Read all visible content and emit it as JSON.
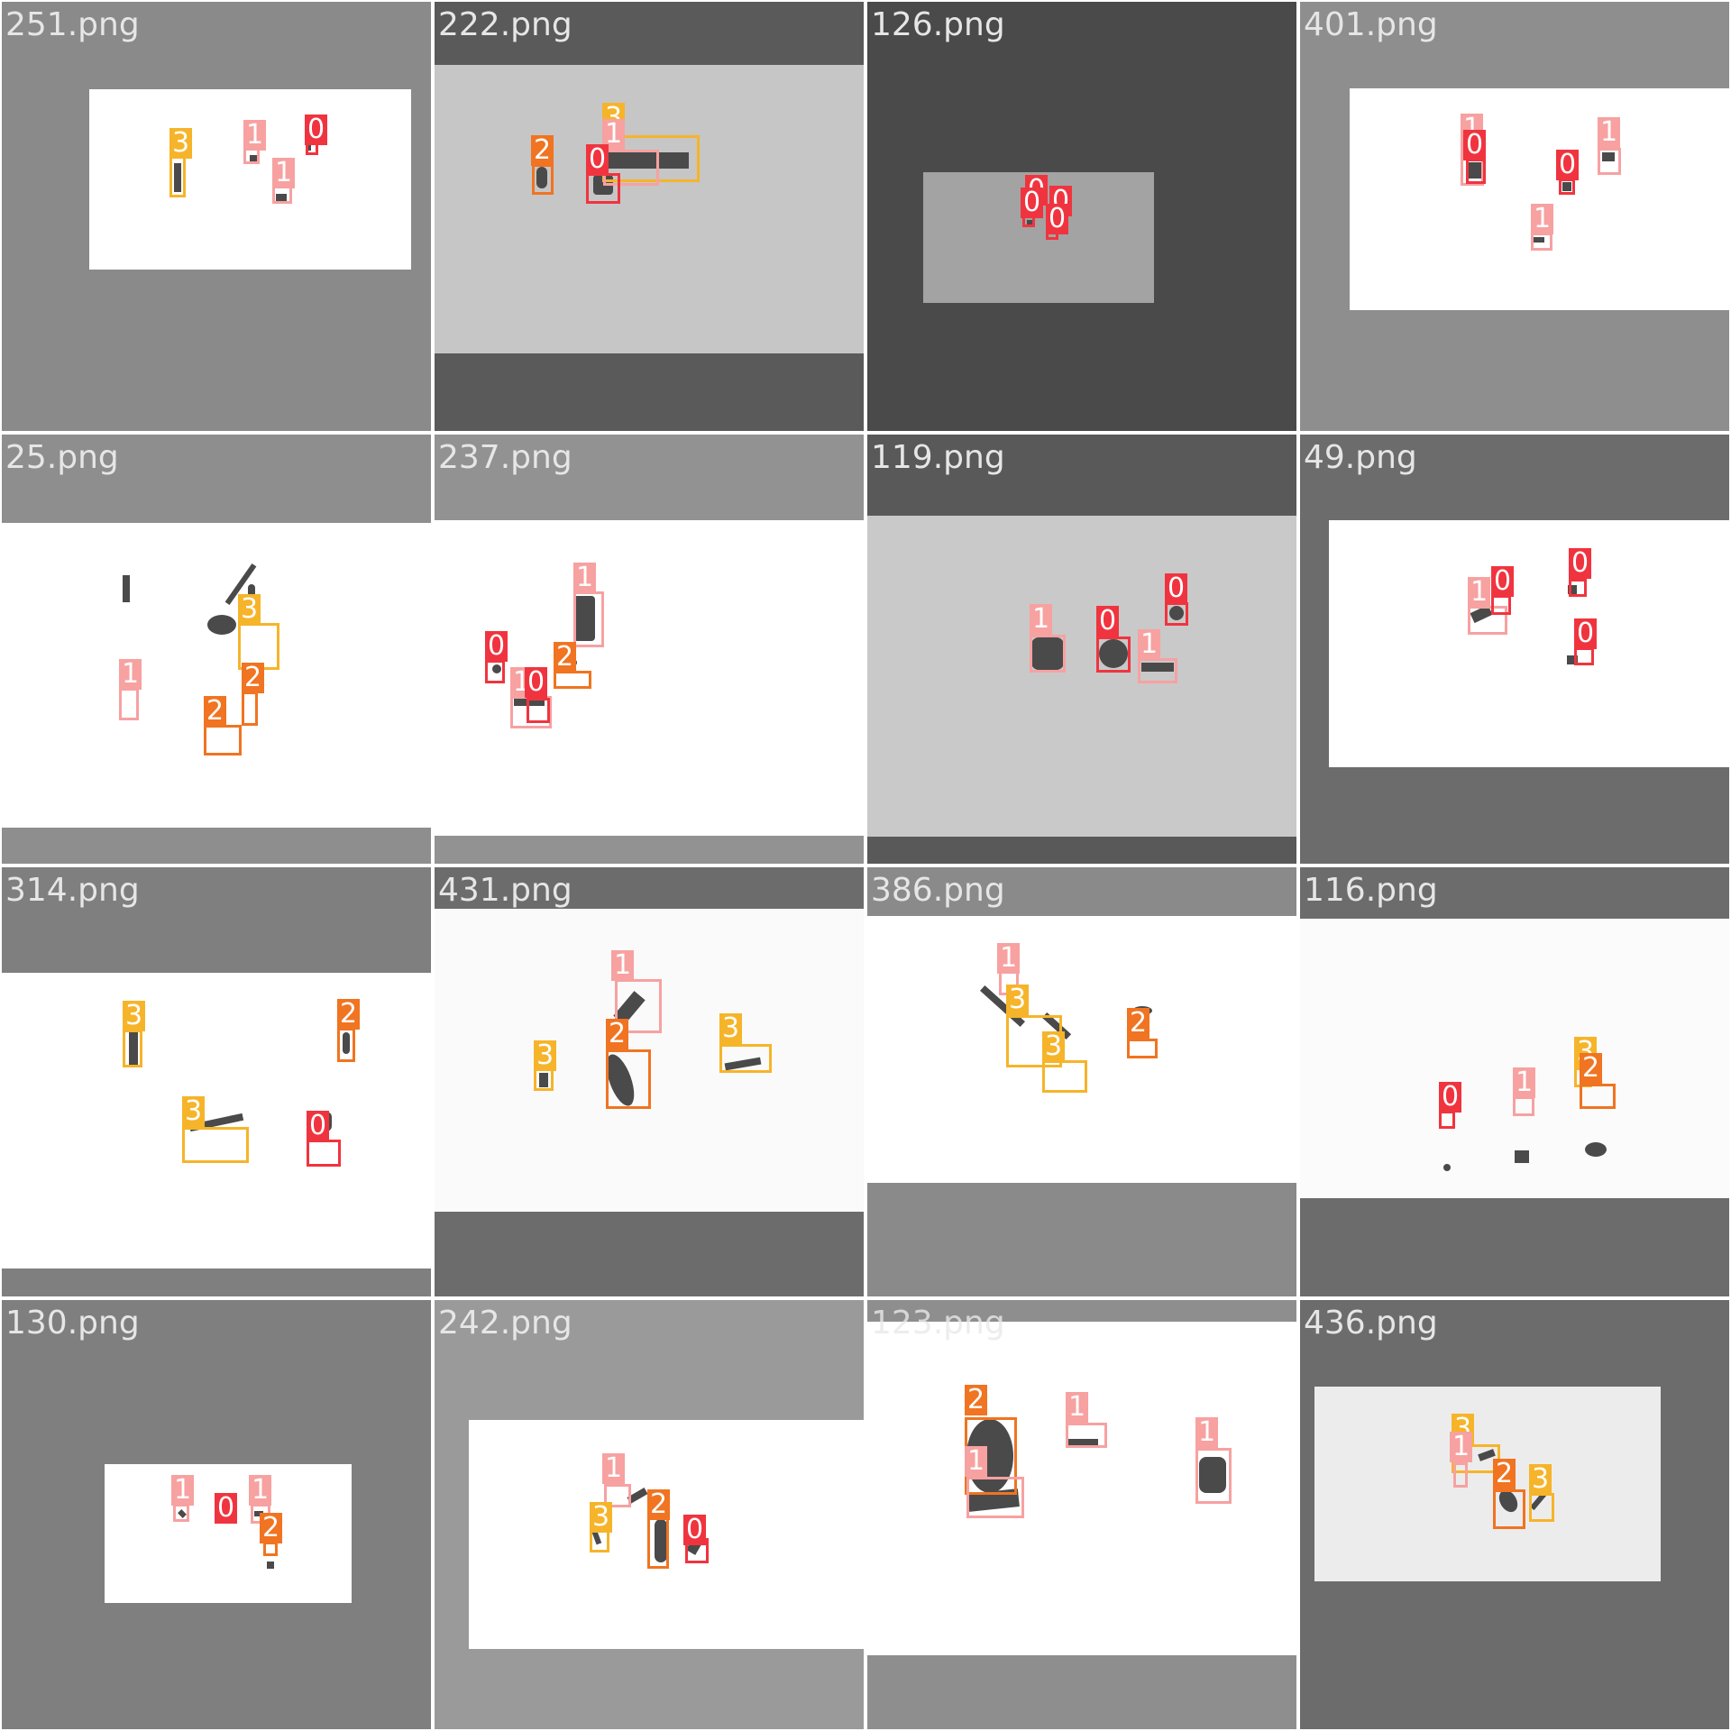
{
  "colors": {
    "class_0": "#f0343f",
    "class_1": "#f7a1a1",
    "class_2": "#f07421",
    "class_3": "#f6b42a"
  },
  "tiles": [
    {
      "name": "251.png",
      "bg": "#8a8a8a",
      "photo_bg": "#ffffff",
      "detections": [
        {
          "cls": "3",
          "label": "3"
        },
        {
          "cls": "1",
          "label": "1"
        },
        {
          "cls": "0",
          "label": "0"
        },
        {
          "cls": "1",
          "label": "1"
        }
      ]
    },
    {
      "name": "222.png",
      "bg": "#5a5a5a",
      "photo_bg": "#c6c6c6",
      "detections": [
        {
          "cls": "2",
          "label": "2"
        },
        {
          "cls": "3",
          "label": "3"
        },
        {
          "cls": "1",
          "label": "1"
        },
        {
          "cls": "0",
          "label": "0"
        }
      ]
    },
    {
      "name": "126.png",
      "bg": "#4a4a4a",
      "photo_bg": "#a3a3a3",
      "detections": [
        {
          "cls": "0",
          "label": "0"
        },
        {
          "cls": "0",
          "label": "0"
        },
        {
          "cls": "0",
          "label": "0"
        },
        {
          "cls": "0",
          "label": "0"
        }
      ]
    },
    {
      "name": "401.png",
      "bg": "#8e8e8e",
      "photo_bg": "#ffffff",
      "detections": [
        {
          "cls": "1",
          "label": "1"
        },
        {
          "cls": "0",
          "label": "0"
        },
        {
          "cls": "0",
          "label": "0"
        },
        {
          "cls": "1",
          "label": "1"
        },
        {
          "cls": "1",
          "label": "1"
        }
      ]
    },
    {
      "name": "25.png",
      "bg": "#8e8e8e",
      "photo_bg": "#ffffff",
      "detections": [
        {
          "cls": "3",
          "label": "3"
        },
        {
          "cls": "1",
          "label": "1"
        },
        {
          "cls": "2",
          "label": "2"
        },
        {
          "cls": "2",
          "label": "2"
        }
      ]
    },
    {
      "name": "237.png",
      "bg": "#929292",
      "photo_bg": "#ffffff",
      "detections": [
        {
          "cls": "1",
          "label": "1"
        },
        {
          "cls": "0",
          "label": "0"
        },
        {
          "cls": "2",
          "label": "2"
        },
        {
          "cls": "1",
          "label": "1"
        },
        {
          "cls": "0",
          "label": "0"
        }
      ]
    },
    {
      "name": "119.png",
      "bg": "#595959",
      "photo_bg": "#c9c9c9",
      "detections": [
        {
          "cls": "1",
          "label": "1"
        },
        {
          "cls": "0",
          "label": "0"
        },
        {
          "cls": "0",
          "label": "0"
        },
        {
          "cls": "1",
          "label": "1"
        }
      ]
    },
    {
      "name": "49.png",
      "bg": "#6c6c6c",
      "photo_bg": "#ffffff",
      "detections": [
        {
          "cls": "1",
          "label": "1"
        },
        {
          "cls": "0",
          "label": "0"
        },
        {
          "cls": "0",
          "label": "0"
        },
        {
          "cls": "0",
          "label": "0"
        }
      ]
    },
    {
      "name": "314.png",
      "bg": "#7f7f7f",
      "photo_bg": "#ffffff",
      "detections": [
        {
          "cls": "3",
          "label": "3"
        },
        {
          "cls": "2",
          "label": "2"
        },
        {
          "cls": "3",
          "label": "3"
        },
        {
          "cls": "0",
          "label": "0"
        }
      ]
    },
    {
      "name": "431.png",
      "bg": "#6c6c6c",
      "photo_bg": "#fafafa",
      "detections": [
        {
          "cls": "1",
          "label": "1"
        },
        {
          "cls": "2",
          "label": "2"
        },
        {
          "cls": "3",
          "label": "3"
        },
        {
          "cls": "3",
          "label": "3"
        }
      ]
    },
    {
      "name": "386.png",
      "bg": "#8a8a8a",
      "photo_bg": "#ffffff",
      "detections": [
        {
          "cls": "1",
          "label": "1"
        },
        {
          "cls": "3",
          "label": "3"
        },
        {
          "cls": "3",
          "label": "3"
        },
        {
          "cls": "2",
          "label": "2"
        }
      ]
    },
    {
      "name": "116.png",
      "bg": "#6c6c6c",
      "photo_bg": "#fbfbfb",
      "detections": [
        {
          "cls": "0",
          "label": "0"
        },
        {
          "cls": "1",
          "label": "1"
        },
        {
          "cls": "3",
          "label": "3"
        },
        {
          "cls": "2",
          "label": "2"
        }
      ]
    },
    {
      "name": "130.png",
      "bg": "#7f7f7f",
      "photo_bg": "#ffffff",
      "detections": [
        {
          "cls": "1",
          "label": "1"
        },
        {
          "cls": "0",
          "label": "0"
        },
        {
          "cls": "1",
          "label": "1"
        },
        {
          "cls": "2",
          "label": "2"
        }
      ]
    },
    {
      "name": "242.png",
      "bg": "#9a9a9a",
      "photo_bg": "#ffffff",
      "detections": [
        {
          "cls": "1",
          "label": "1"
        },
        {
          "cls": "3",
          "label": "3"
        },
        {
          "cls": "2",
          "label": "2"
        },
        {
          "cls": "0",
          "label": "0"
        }
      ]
    },
    {
      "name": "123.png",
      "bg": "#8e8e8e",
      "photo_bg": "#ffffff",
      "detections": [
        {
          "cls": "2",
          "label": "2"
        },
        {
          "cls": "1",
          "label": "1"
        },
        {
          "cls": "1",
          "label": "1"
        },
        {
          "cls": "1",
          "label": "1"
        }
      ]
    },
    {
      "name": "436.png",
      "bg": "#6c6c6c",
      "photo_bg": "#ececec",
      "detections": [
        {
          "cls": "3",
          "label": "3"
        },
        {
          "cls": "1",
          "label": "1"
        },
        {
          "cls": "2",
          "label": "2"
        },
        {
          "cls": "3",
          "label": "3"
        }
      ]
    }
  ]
}
